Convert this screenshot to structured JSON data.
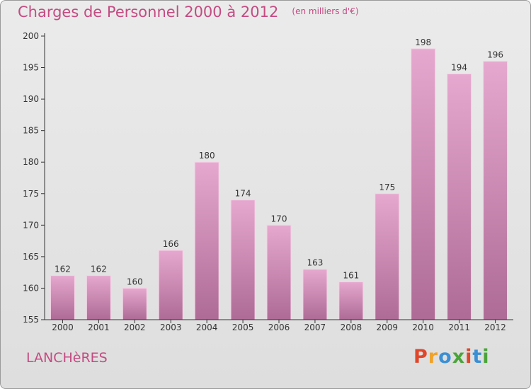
{
  "page": {
    "title": "Charges de Personnel 2000 à 2012",
    "unit": "(en milliers d'€)",
    "commune": "LANCHèRES",
    "brand": {
      "text": "Proxiti",
      "colors": [
        "#e0462a",
        "#f0a22a",
        "#3b8fd4",
        "#4aa43a",
        "#e0462a",
        "#3b8fd4",
        "#4aa43a"
      ]
    }
  },
  "chart_data": {
    "type": "bar",
    "title": "Charges de Personnel 2000 à 2012",
    "subtitle": "(en milliers d'€)",
    "xlabel": "",
    "ylabel": "",
    "categories": [
      "2000",
      "2001",
      "2002",
      "2003",
      "2004",
      "2005",
      "2006",
      "2007",
      "2008",
      "2009",
      "2010",
      "2011",
      "2012"
    ],
    "values": [
      162,
      162,
      160,
      166,
      180,
      174,
      170,
      163,
      161,
      175,
      198,
      194,
      196
    ],
    "ylim": [
      155,
      200
    ],
    "yticks": [
      155,
      160,
      165,
      170,
      175,
      180,
      185,
      190,
      195,
      200
    ],
    "grid": false,
    "legend": "none",
    "colors": {
      "bar_top": "#e6a8cf",
      "bar_bottom": "#ad6b95",
      "text": "#333333",
      "accent": "#c44b82"
    }
  }
}
